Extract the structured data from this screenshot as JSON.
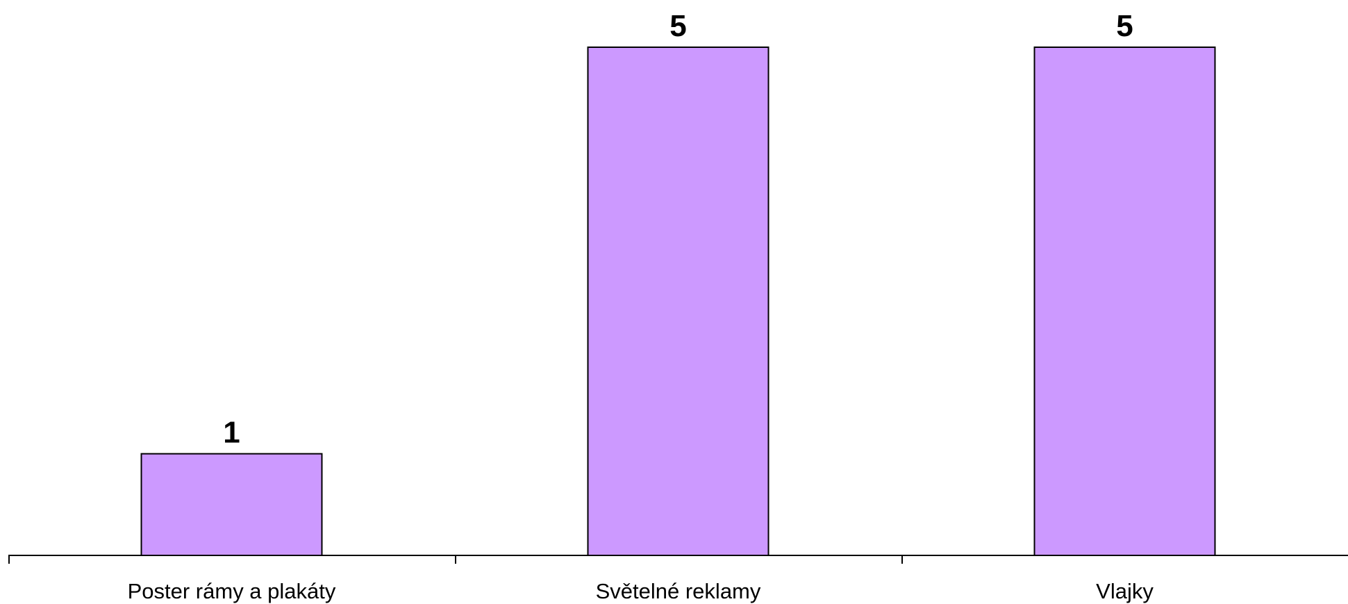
{
  "chart_data": {
    "type": "bar",
    "categories": [
      "Poster rámy a plakáty",
      "Světelné reklamy",
      "Vlajky"
    ],
    "values": [
      1,
      5,
      5
    ],
    "data_labels": [
      "1",
      "5",
      "5"
    ],
    "title": "",
    "xlabel": "",
    "ylabel": "",
    "ylim": [
      0,
      5
    ],
    "grid": false,
    "legend": "none",
    "colors": {
      "bar_fill": "#cc99ff",
      "bar_stroke": "#000000",
      "axis": "#000000",
      "text": "#000000"
    }
  }
}
